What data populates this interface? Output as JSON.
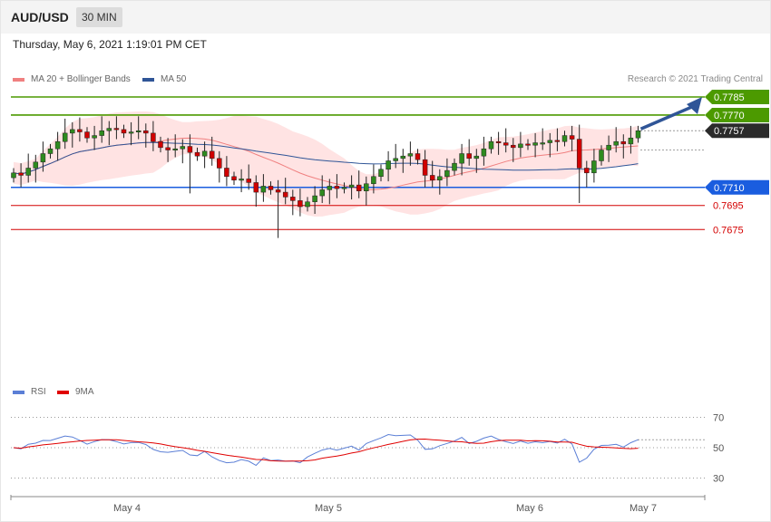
{
  "header": {
    "pair": "AUD/USD",
    "timeframe": "30 MIN"
  },
  "timestamp": "Thursday, May 6, 2021 1:19:01 PM CET",
  "legend_main": [
    {
      "label": "MA 20 + Bollinger Bands",
      "color": "#f08080"
    },
    {
      "label": "MA 50",
      "color": "#2f5597"
    }
  ],
  "legend_rsi": [
    {
      "label": "RSI",
      "color": "#5b7fd6"
    },
    {
      "label": "9MA",
      "color": "#e00000"
    }
  ],
  "credit": "Research © 2021 Trading Central",
  "chart_data": {
    "type": "candlestick",
    "x_ticks": [
      "May 4",
      "May 5",
      "May 6",
      "May 7"
    ],
    "current_price": "0.7757",
    "levels": [
      {
        "label": "0.7785",
        "value": 0.7785,
        "kind": "resistance",
        "color": "#4c9a00"
      },
      {
        "label": "0.7770",
        "value": 0.777,
        "kind": "resistance",
        "color": "#4c9a00"
      },
      {
        "label": "0.7710",
        "value": 0.771,
        "kind": "pivot",
        "color": "#1a5ddf"
      },
      {
        "label": "0.7695",
        "value": 0.7695,
        "kind": "support",
        "color": "#d40000"
      },
      {
        "label": "0.7675",
        "value": 0.7675,
        "kind": "support",
        "color": "#d40000"
      }
    ],
    "rsi_levels": [
      "70",
      "50",
      "30"
    ],
    "ohlc_close": [
      0.7722,
      0.772,
      0.7726,
      0.7731,
      0.7738,
      0.7742,
      0.7748,
      0.7755,
      0.7758,
      0.7756,
      0.7751,
      0.7753,
      0.7757,
      0.7759,
      0.7758,
      0.7755,
      0.7756,
      0.7757,
      0.7755,
      0.7748,
      0.7743,
      0.7741,
      0.7742,
      0.7744,
      0.7739,
      0.7736,
      0.774,
      0.7734,
      0.7726,
      0.7719,
      0.7716,
      0.7717,
      0.7714,
      0.7706,
      0.7711,
      0.7708,
      0.7706,
      0.7702,
      0.7699,
      0.7694,
      0.7698,
      0.7703,
      0.7708,
      0.7711,
      0.7709,
      0.771,
      0.7712,
      0.7707,
      0.7713,
      0.7719,
      0.7725,
      0.7732,
      0.7734,
      0.7736,
      0.7738,
      0.7733,
      0.772,
      0.7716,
      0.7719,
      0.7724,
      0.773,
      0.7738,
      0.7734,
      0.7736,
      0.7742,
      0.7748,
      0.7747,
      0.7745,
      0.7743,
      0.7746,
      0.7745,
      0.7747,
      0.7747,
      0.7749,
      0.7748,
      0.7753,
      0.775,
      0.7726,
      0.7722,
      0.7732,
      0.7741,
      0.7745,
      0.7748,
      0.7746,
      0.7751,
      0.7757
    ]
  }
}
